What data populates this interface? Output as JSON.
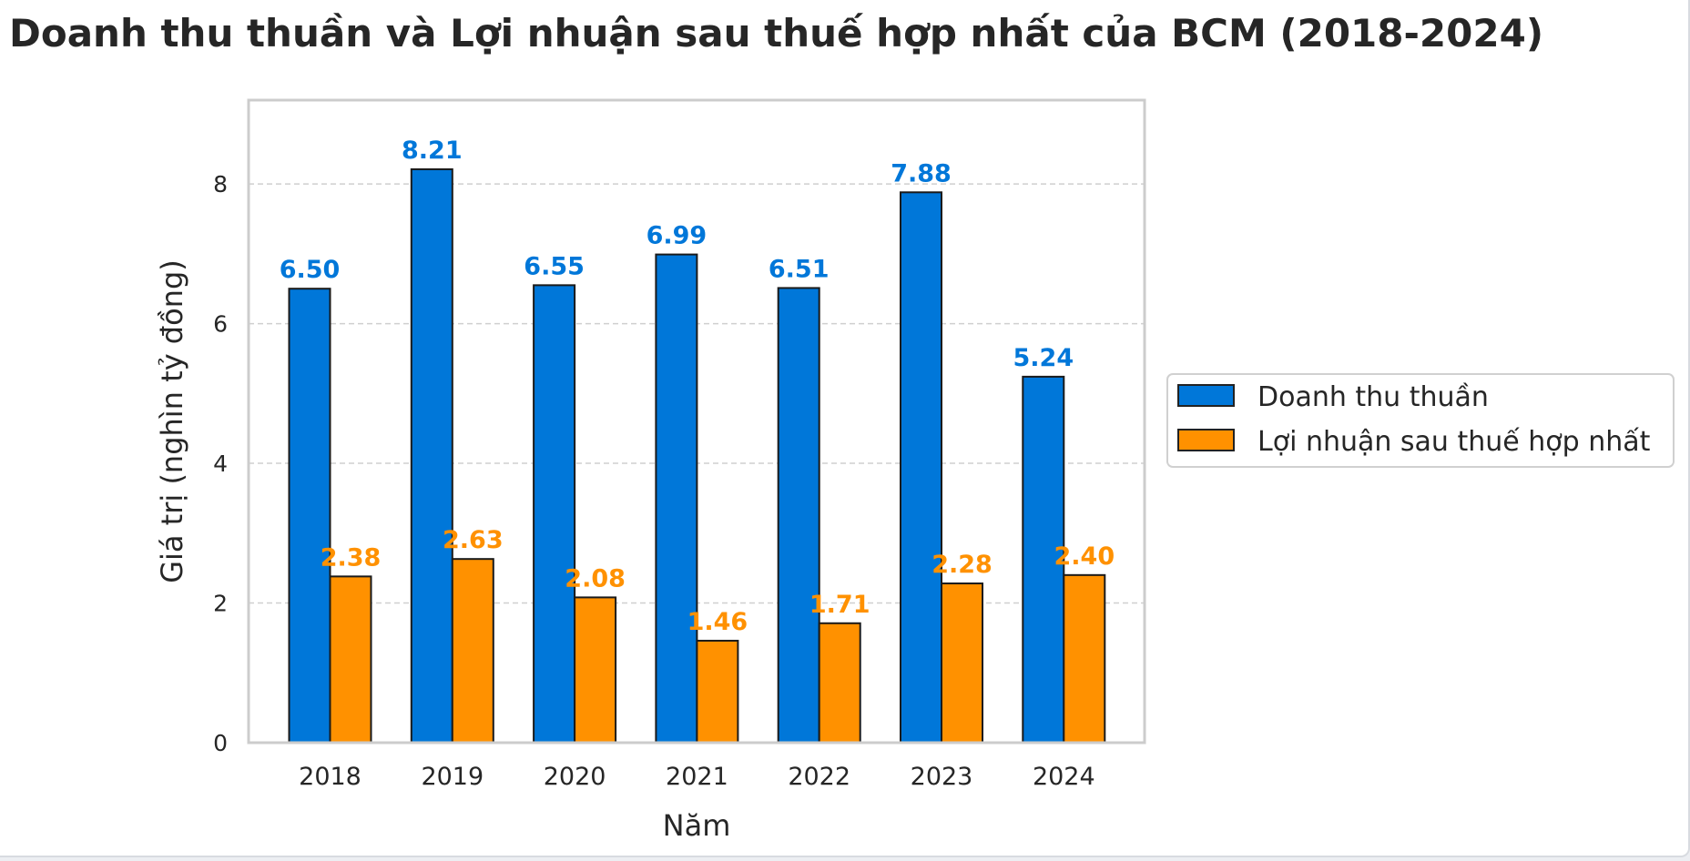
{
  "chart_data": {
    "type": "bar",
    "title": "Doanh thu thuần và Lợi nhuận sau thuế hợp nhất của BCM (2018-2024)",
    "xlabel": "Năm",
    "ylabel": "Giá trị (nghìn tỷ đồng)",
    "categories": [
      "2018",
      "2019",
      "2020",
      "2021",
      "2022",
      "2023",
      "2024"
    ],
    "ylim": [
      0,
      9.2
    ],
    "yticks": [
      0,
      2,
      4,
      6,
      8
    ],
    "grid": true,
    "legend_position": "right",
    "series": [
      {
        "name": "Doanh thu thuần",
        "color": "#0077d9",
        "values": [
          6.5,
          8.21,
          6.55,
          6.99,
          6.51,
          7.88,
          5.24
        ],
        "labels": [
          "6.50",
          "8.21",
          "6.55",
          "6.99",
          "6.51",
          "7.88",
          "5.24"
        ]
      },
      {
        "name": "Lợi nhuận sau thuế hợp nhất",
        "color": "#ff9100",
        "values": [
          2.38,
          2.63,
          2.08,
          1.46,
          1.71,
          2.28,
          2.4
        ],
        "labels": [
          "2.38",
          "2.63",
          "2.08",
          "1.46",
          "1.71",
          "2.28",
          "2.40"
        ]
      }
    ]
  }
}
